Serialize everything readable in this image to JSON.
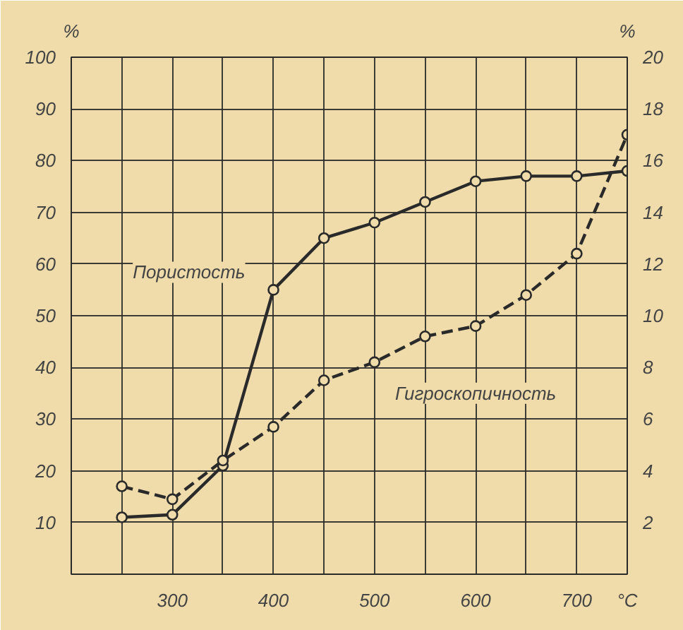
{
  "chart_data": {
    "type": "line",
    "xlabel": "°C",
    "ylabel": "%",
    "y2label": "%",
    "xlim": [
      200,
      750
    ],
    "ylim": [
      0,
      100
    ],
    "y2lim": [
      0,
      20
    ],
    "xticks": [
      {
        "value": 200,
        "label": null
      },
      {
        "value": 250,
        "label": null
      },
      300,
      {
        "value": 350,
        "label": null
      },
      400,
      {
        "value": 450,
        "label": null
      },
      500,
      {
        "value": 550,
        "label": null
      },
      600,
      {
        "value": 650,
        "label": null
      },
      700,
      {
        "value": 750,
        "label": null
      }
    ],
    "yticks": [
      {
        "value": 0,
        "label": null
      },
      10,
      20,
      30,
      40,
      50,
      60,
      70,
      80,
      90,
      100
    ],
    "y2ticks": [
      2,
      4,
      6,
      8,
      10,
      12,
      14,
      16,
      18,
      20
    ],
    "x": [
      250,
      300,
      350,
      400,
      450,
      500,
      550,
      600,
      650,
      700,
      750
    ],
    "series": [
      {
        "name": "Пористость",
        "color": "#2a2a2a",
        "line_style": "solid",
        "values": [
          11,
          11.5,
          21,
          55,
          65,
          68,
          72,
          76,
          77,
          77,
          78
        ]
      },
      {
        "name": "Гигроскопичность",
        "color": "#2a2a2a",
        "line_style": "dashed",
        "axis": "y2",
        "values": [
          3.4,
          2.9,
          4.4,
          5.7,
          7.5,
          8.2,
          9.2,
          9.6,
          10.8,
          12.4,
          17
        ]
      }
    ],
    "marker": "circle",
    "grid": true
  }
}
